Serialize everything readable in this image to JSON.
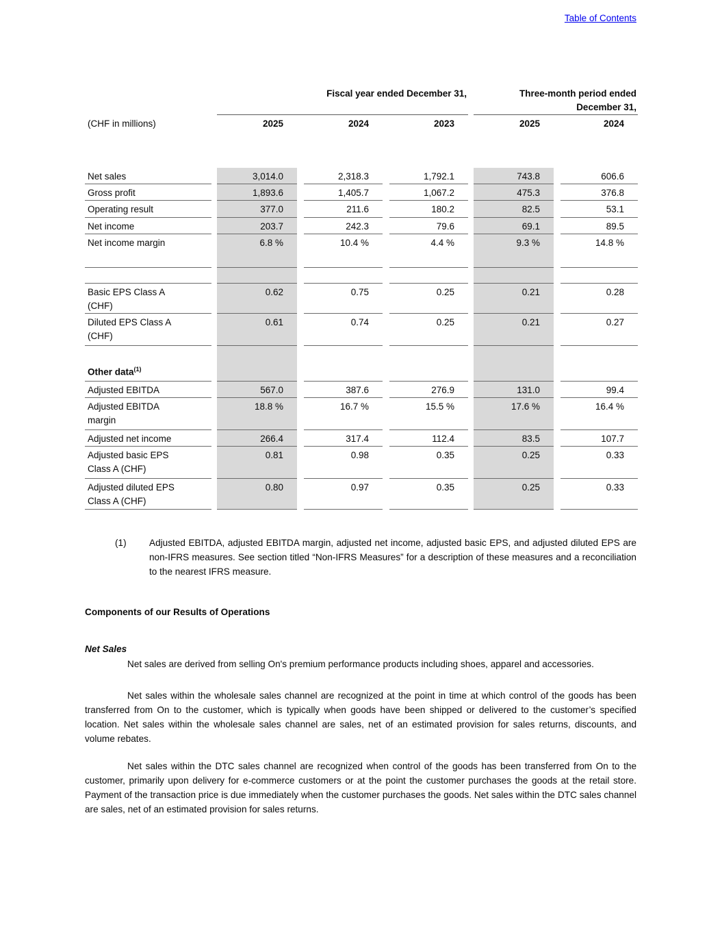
{
  "colors": {
    "link_blue": "#0000ee",
    "column_shade": "#d9d9d9",
    "rule_gray": "#6a6a6a"
  },
  "toc_link_label": "Table of Contents",
  "table": {
    "group_headers": {
      "fiscal_year": "Fiscal year ended December 31,",
      "three_month": "Three-month period ended December 31,"
    },
    "row_label_header": "(CHF in millions)",
    "col_years": [
      "2025",
      "2024",
      "2023",
      "2025",
      "2024"
    ],
    "rows": [
      {
        "label": "Net sales",
        "values": [
          "3,014.0",
          "2,318.3",
          "1,792.1",
          "743.8",
          "606.6"
        ]
      },
      {
        "label": "Gross profit",
        "values": [
          "1,893.6",
          "1,405.7",
          "1,067.2",
          "475.3",
          "376.8"
        ]
      },
      {
        "label": "Operating result",
        "values": [
          "377.0",
          "211.6",
          "180.2",
          "82.5",
          "53.1"
        ]
      },
      {
        "label": "Net income",
        "values": [
          "203.7",
          "242.3",
          "79.6",
          "69.1",
          "89.5"
        ]
      },
      {
        "label": "Net income margin",
        "values": [
          "6.8 %",
          "10.4 %",
          "4.4 %",
          "9.3 %",
          "14.8 %"
        ]
      },
      {
        "label": "",
        "values": [
          "",
          "",
          "",
          "",
          ""
        ]
      },
      {
        "label": "Basic EPS Class A (CHF)",
        "values": [
          "0.62",
          "0.75",
          "0.25",
          "0.21",
          "0.28"
        ]
      },
      {
        "label": "Diluted EPS Class A (CHF)",
        "values": [
          "0.61",
          "0.74",
          "0.25",
          "0.21",
          "0.27"
        ]
      },
      {
        "label": "Other data",
        "sup": "(1)",
        "values": [
          "",
          "",
          "",
          "",
          ""
        ]
      },
      {
        "label": "Adjusted EBITDA",
        "values": [
          "567.0",
          "387.6",
          "276.9",
          "131.0",
          "99.4"
        ]
      },
      {
        "label": "Adjusted EBITDA margin",
        "values": [
          "18.8 %",
          "16.7 %",
          "15.5 %",
          "17.6 %",
          "16.4 %"
        ]
      },
      {
        "label": "Adjusted net income",
        "values": [
          "266.4",
          "317.4",
          "112.4",
          "83.5",
          "107.7"
        ]
      },
      {
        "label": "Adjusted basic EPS Class A (CHF)",
        "values": [
          "0.81",
          "0.98",
          "0.35",
          "0.25",
          "0.33"
        ]
      },
      {
        "label": "Adjusted diluted EPS Class A (CHF)",
        "values": [
          "0.80",
          "0.97",
          "0.35",
          "0.25",
          "0.33"
        ]
      }
    ]
  },
  "footnote": {
    "marker": "(1)",
    "text": "Adjusted EBITDA, adjusted EBITDA margin, adjusted net income, adjusted basic EPS, and adjusted diluted EPS are non-IFRS measures. See section titled “Non-IFRS Measures” for a description of these measures and a reconciliation to the nearest IFRS measure."
  },
  "headings": {
    "components": "Components of our Results of Operations",
    "net_sales": "Net Sales"
  },
  "paragraphs": [
    "Net sales are derived from selling On's premium performance products including shoes, apparel and accessories.",
    "Net sales within the wholesale sales channel are recognized at the point in time at which control of the goods has been transferred from On to the customer, which is typically when goods have been shipped or delivered to the customer’s specified location. Net sales within the wholesale sales channel are sales, net of an estimated provision for sales returns, discounts, and volume rebates.",
    "Net sales within the DTC sales channel are recognized when control of the goods has been transferred from On to the customer, primarily upon delivery for e-commerce customers or at the point the customer purchases the goods at the retail store. Payment of the transaction price is due immediately when the customer purchases the goods. Net sales within the DTC sales channel are sales, net of an estimated provision for sales returns."
  ]
}
